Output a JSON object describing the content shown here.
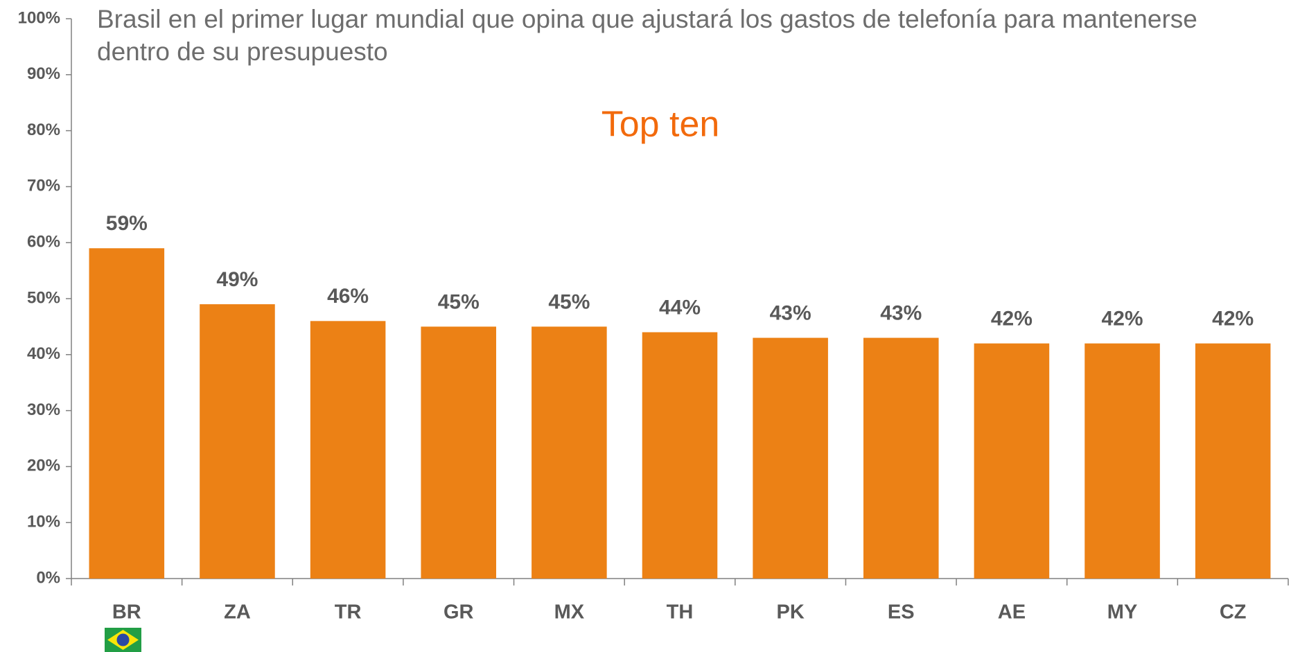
{
  "chart_data": {
    "type": "bar",
    "title": "Brasil en el primer lugar mundial que opina que ajustará los gastos de telefonía para mantenerse dentro de su presupuesto",
    "subtitle": "Top ten",
    "categories": [
      "BR",
      "ZA",
      "TR",
      "GR",
      "MX",
      "TH",
      "PK",
      "ES",
      "AE",
      "MY",
      "CZ"
    ],
    "values": [
      59,
      49,
      46,
      45,
      45,
      44,
      43,
      43,
      42,
      42,
      42
    ],
    "value_labels": [
      "59%",
      "49%",
      "46%",
      "45%",
      "45%",
      "44%",
      "43%",
      "43%",
      "42%",
      "42%",
      "42%"
    ],
    "color": "#ec8115",
    "ylim": [
      0,
      100
    ],
    "yticks": [
      {
        "value": 0,
        "label": "0%"
      },
      {
        "value": 10,
        "label": "10%"
      },
      {
        "value": 20,
        "label": "20%"
      },
      {
        "value": 30,
        "label": "30%"
      },
      {
        "value": 40,
        "label": "40%"
      },
      {
        "value": 50,
        "label": "50%"
      },
      {
        "value": 60,
        "label": "60%"
      },
      {
        "value": 70,
        "label": "70%"
      },
      {
        "value": 80,
        "label": "80%"
      },
      {
        "value": 90,
        "label": "90%"
      },
      {
        "value": 100,
        "label": "100%"
      }
    ],
    "grid": false
  }
}
